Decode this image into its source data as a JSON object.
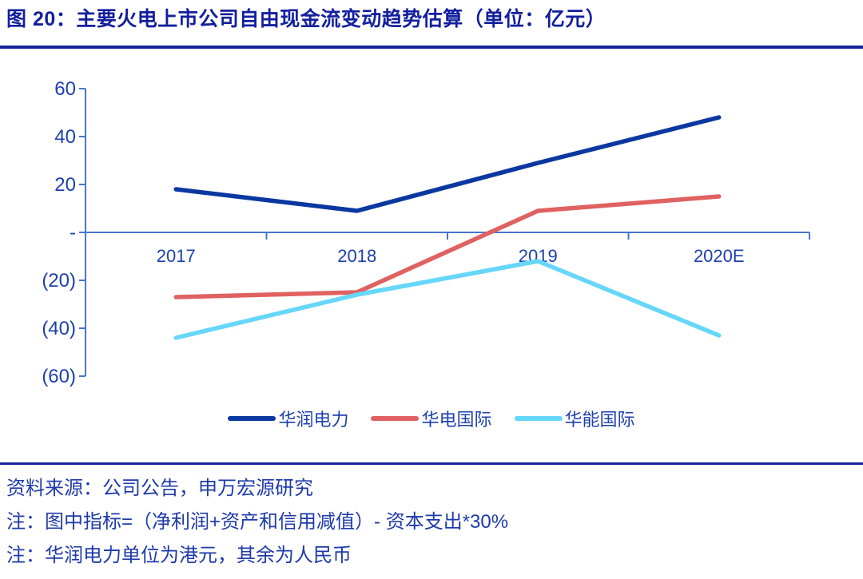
{
  "title": "图 20：主要火电上市公司自由现金流变动趋势估算（单位：亿元）",
  "chart_data": {
    "type": "line",
    "title": "主要火电上市公司自由现金流变动趋势估算",
    "unit_label": "亿元",
    "categories": [
      "2017",
      "2018",
      "2019",
      "2020E"
    ],
    "series": [
      {
        "name": "华润电力",
        "color": "#0B38A0",
        "values": [
          18,
          9,
          29,
          48
        ]
      },
      {
        "name": "华电国际",
        "color": "#E06161",
        "values": [
          -27,
          -25,
          9,
          15
        ]
      },
      {
        "name": "华能国际",
        "color": "#66D6F9",
        "values": [
          -44,
          -26,
          -12,
          -43
        ]
      }
    ],
    "xlabel": "",
    "ylabel": "",
    "ylim": [
      -60,
      60
    ],
    "ytick_values": [
      60,
      40,
      20,
      0,
      -20,
      -40,
      -60
    ],
    "ytick_labels": [
      "60",
      "40",
      "20",
      "-",
      "(20)",
      "(40)",
      "(60)"
    ],
    "grid": false,
    "legend_position": "bottom"
  },
  "colors": {
    "title_text": "#131F9E",
    "rule": "#16239D",
    "axis_line": "#4A74CC",
    "axis_text": "#1D3FAE",
    "footer_text": "#1E3AAB"
  },
  "footer": {
    "source": "资料来源：公司公告，申万宏源研究",
    "note1": "注：图中指标=（净利润+资产和信用减值）- 资本支出*30%",
    "note2": "注：华润电力单位为港元，其余为人民币"
  }
}
